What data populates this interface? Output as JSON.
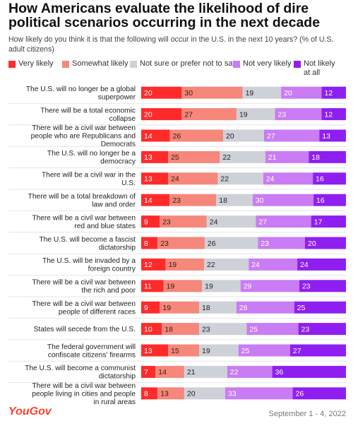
{
  "colors": {
    "very_likely": "#ff2b2b",
    "somewhat_likely": "#f5877b",
    "not_sure": "#cfd1d9",
    "not_very_likely": "#c97cf3",
    "not_likely_at_all": "#8f1ff0"
  },
  "header": {
    "title": "How Americans evaluate the likelihood of dire political scenarios occurring in the next decade",
    "subtitle": "How likely do you think it is that the following will occur in the U.S. in the next 10 years? (% of U.S. adult citizens)"
  },
  "footer": {
    "brand": "YouGov",
    "date": "September 1 - 4, 2022"
  },
  "chart_data": {
    "type": "bar",
    "orientation": "horizontal-stacked",
    "categories": [
      "The U.S. will no longer be a global superpower",
      "There will be a total economic collapse",
      "There will be a civil war between people who are Republicans and Democrats",
      "The U.S. will no longer be a democracy",
      "There will be a civil war in the U.S.",
      "There will be a total breakdown of law and order",
      "There will be a civil war between red and blue states",
      "The U.S. will become a fascist dictatorship",
      "The U.S. will be invaded by a foreign country",
      "There will be a civil war between the rich and poor",
      "There will be a civil war between people of different races",
      "States will secede from the U.S.",
      "The federal government will confiscate citizens' firearms",
      "The U.S. will become a communist dictatorship",
      "There will be a civil war between people living in cities and people in rural areas"
    ],
    "series": [
      {
        "name": "Very likely",
        "color": "#ff2b2b",
        "values": [
          20,
          20,
          14,
          13,
          13,
          14,
          9,
          8,
          12,
          11,
          9,
          10,
          13,
          7,
          8
        ]
      },
      {
        "name": "Somewhat likely",
        "color": "#f5877b",
        "values": [
          30,
          27,
          26,
          25,
          24,
          23,
          23,
          23,
          19,
          19,
          19,
          18,
          15,
          14,
          13
        ]
      },
      {
        "name": "Not sure or prefer not to say",
        "color": "#cfd1d9",
        "values": [
          19,
          19,
          20,
          22,
          22,
          18,
          24,
          26,
          22,
          19,
          18,
          23,
          19,
          21,
          20
        ]
      },
      {
        "name": "Not very likely",
        "color": "#c97cf3",
        "values": [
          20,
          23,
          27,
          21,
          24,
          30,
          27,
          23,
          24,
          29,
          28,
          25,
          25,
          22,
          33
        ]
      },
      {
        "name": "Not likely at all",
        "color": "#8f1ff0",
        "values": [
          12,
          12,
          13,
          18,
          16,
          16,
          17,
          20,
          24,
          23,
          25,
          23,
          27,
          36,
          26
        ]
      }
    ],
    "legend_position": "top"
  }
}
